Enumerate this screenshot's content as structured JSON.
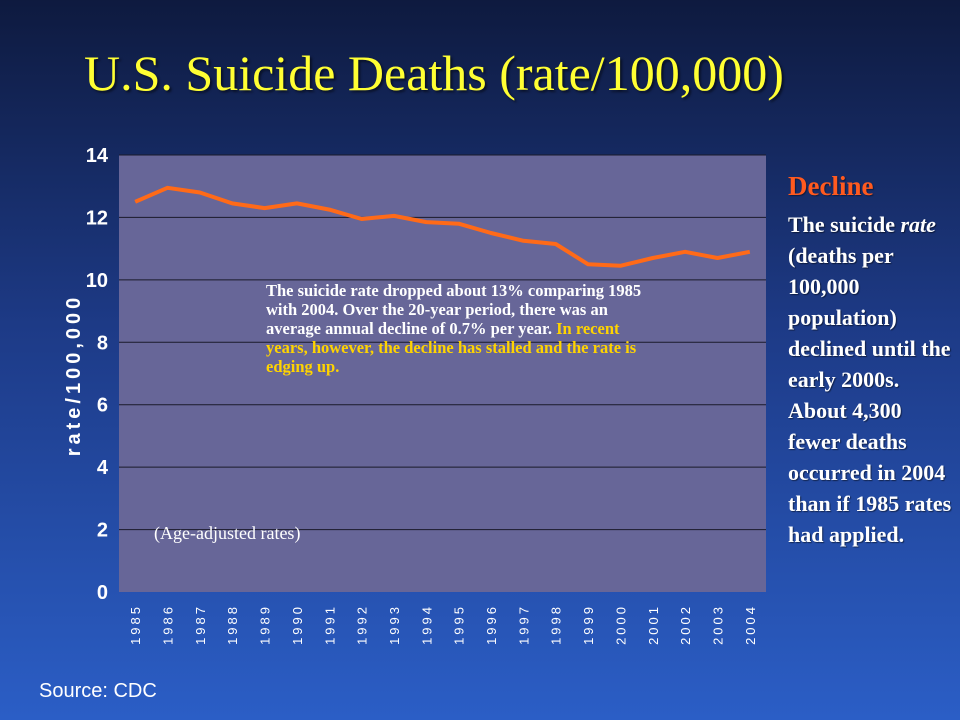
{
  "title": "U.S. Suicide Deaths (rate/100,000)",
  "sidebar": {
    "heading": "Decline",
    "body_part1": "The suicide ",
    "body_italic": "rate",
    "body_part2": " (deaths per 100,000 population) declined until the early 2000s. About 4,300 fewer deaths occurred in 2004 than if 1985 rates had applied."
  },
  "annotation": {
    "text_white": "The suicide rate dropped about 13% comparing 1985 with 2004. Over the 20-year period, there was an average annual decline of  0.7% per year. ",
    "text_highlight": "In recent years, however, the decline has stalled and the rate is edging up."
  },
  "age_note": "(Age-adjusted rates)",
  "source": "Source: CDC",
  "colors": {
    "plot_bg": "#676698",
    "line": "#ff6a18",
    "gridline": "#1a1a2a",
    "title": "#ffff33",
    "heading": "#ff5a1f",
    "highlight": "#ffd400"
  },
  "chart_data": {
    "type": "line",
    "title": "U.S. Suicide Deaths (rate/100,000)",
    "xlabel": "",
    "ylabel": "rate/100,000",
    "ylim": [
      0,
      14
    ],
    "yticks": [
      0,
      2,
      4,
      6,
      8,
      10,
      12,
      14
    ],
    "grid": true,
    "categories": [
      "1985",
      "1986",
      "1987",
      "1988",
      "1989",
      "1990",
      "1991",
      "1992",
      "1993",
      "1994",
      "1995",
      "1996",
      "1997",
      "1998",
      "1999",
      "2000",
      "2001",
      "2002",
      "2003",
      "2004"
    ],
    "series": [
      {
        "values": [
          12.5,
          12.95,
          12.8,
          12.45,
          12.3,
          12.45,
          12.25,
          11.95,
          12.05,
          11.85,
          11.8,
          11.5,
          11.25,
          11.15,
          10.5,
          10.45,
          10.7,
          10.9,
          10.7,
          10.9
        ]
      }
    ]
  }
}
